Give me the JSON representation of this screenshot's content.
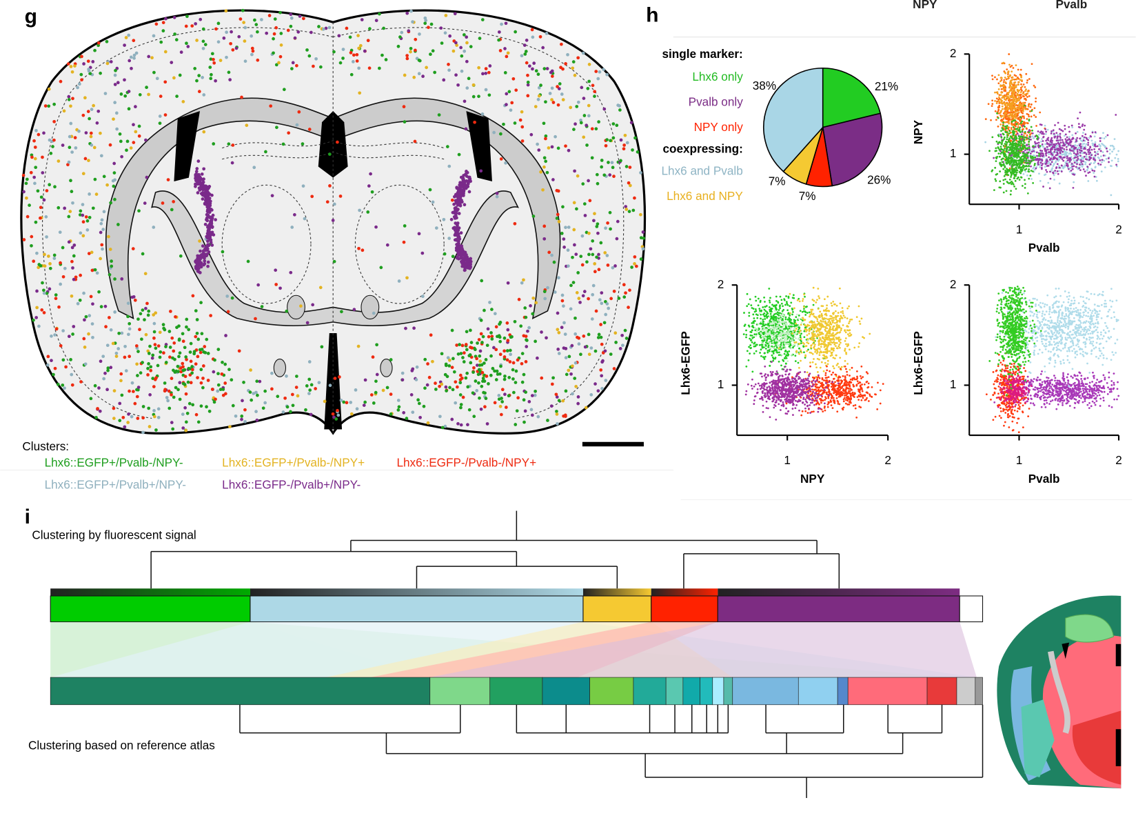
{
  "panel_g": {
    "label": "g",
    "legend_title": "Clusters:",
    "clusters": [
      {
        "name": "Lhx6::EGFP+/Pvalb-/NPY-",
        "color": "#1f9e1f"
      },
      {
        "name": "Lhx6::EGFP+/Pvalb-/NPY+",
        "color": "#e3b322"
      },
      {
        "name": "Lhx6::EGFP-/Pvalb-/NPY+",
        "color": "#ee2a10"
      },
      {
        "name": "Lhx6::EGFP+/Pvalb+/NPY-",
        "color": "#8fb0be"
      },
      {
        "name": "Lhx6::EGFP-/Pvalb+/NPY-",
        "color": "#7a2a8a"
      }
    ]
  },
  "panel_h": {
    "label": "h",
    "header": [
      "NPY",
      "Pvalb"
    ]
  },
  "panel_i": {
    "label": "i",
    "top_title": "Clustering by fluorescent signal",
    "bottom_title": "Clustering based on reference atlas"
  },
  "chart_data": [
    {
      "type": "pie",
      "group_titles": [
        "single marker:",
        "coexpressing:"
      ],
      "categories": [
        "Lhx6 only",
        "Pvalb only",
        "NPY only",
        "Lhx6 and NPY",
        "Lhx6 and Pvalb"
      ],
      "values": [
        21,
        26,
        7,
        7,
        38
      ],
      "value_labels": [
        "21%",
        "26%",
        "7%",
        "7%",
        "38%"
      ],
      "colors": [
        "#22cc22",
        "#7b2d86",
        "#ff2200",
        "#f5c932",
        "#a9d6e6"
      ],
      "label_colors": [
        "#22bb22",
        "#7b2d86",
        "#ff2200",
        "#e8b020",
        "#8eb4c4"
      ]
    },
    {
      "type": "scatter",
      "xlabel": "Pvalb",
      "ylabel": "NPY",
      "xlim": [
        0.5,
        2
      ],
      "ylim": [
        0.5,
        2
      ],
      "xticks": [
        1,
        2
      ],
      "yticks": [
        1,
        2
      ]
    },
    {
      "type": "scatter",
      "xlabel": "NPY",
      "ylabel": "Lhx6-EGFP",
      "xlim": [
        0.5,
        2
      ],
      "ylim": [
        0.5,
        2
      ],
      "xticks": [
        1,
        2
      ],
      "yticks": [
        1,
        2
      ]
    },
    {
      "type": "scatter",
      "xlabel": "Pvalb",
      "ylabel": "Lhx6-EGFP",
      "xlim": [
        0.5,
        2
      ],
      "ylim": [
        0.5,
        2
      ],
      "xticks": [
        1,
        2
      ],
      "yticks": [
        1,
        2
      ]
    }
  ]
}
